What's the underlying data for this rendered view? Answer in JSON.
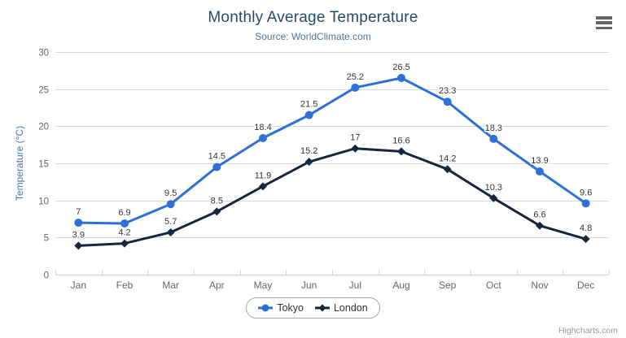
{
  "chart": {
    "title": "Monthly Average Temperature",
    "subtitle": "Source: WorldClimate.com",
    "credits": "Highcharts.com",
    "menu_icon": "hamburger-icon"
  },
  "chart_data": {
    "type": "line",
    "title": "Monthly Average Temperature",
    "subtitle": "Source: WorldClimate.com",
    "categories": [
      "Jan",
      "Feb",
      "Mar",
      "Apr",
      "May",
      "Jun",
      "Jul",
      "Aug",
      "Sep",
      "Oct",
      "Nov",
      "Dec"
    ],
    "series": [
      {
        "name": "Tokyo",
        "marker": "circle",
        "color": "#2e6fd8",
        "values": [
          7,
          6.9,
          9.5,
          14.5,
          18.4,
          21.5,
          25.2,
          26.5,
          23.3,
          18.3,
          13.9,
          9.6
        ]
      },
      {
        "name": "London",
        "marker": "diamond",
        "color": "#15273f",
        "values": [
          3.9,
          4.2,
          5.7,
          8.5,
          11.9,
          15.2,
          17,
          16.6,
          14.2,
          10.3,
          6.6,
          4.8
        ]
      }
    ],
    "xlabel": "",
    "ylabel": "Temperature (°C)",
    "ylim": [
      0,
      30
    ],
    "ytick_step": 5,
    "yticks": [
      0,
      5,
      10,
      15,
      20,
      25,
      30
    ],
    "grid": true,
    "data_labels": true,
    "legend_position": "bottom"
  },
  "colors": {
    "grid_line": "#d8d8d8",
    "axis_line": "#ccd6eb",
    "tick_mark": "#ccd6eb",
    "tick_label": "#666666",
    "data_label": "#333333",
    "title": "#274b6d",
    "subtitle": "#4d759e",
    "yaxis_title": "#4a74a8",
    "legend_text": "#333333",
    "credits_text": "#999999"
  }
}
